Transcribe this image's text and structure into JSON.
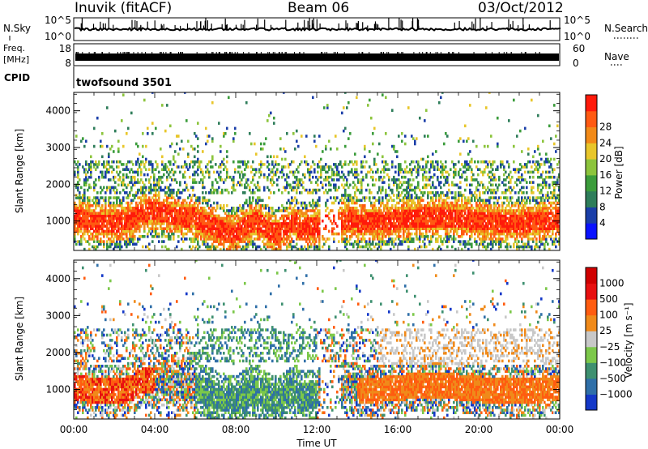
{
  "header": {
    "station": "Inuvik (fitACF)",
    "beam": "Beam 06",
    "date": "03/Oct/2012"
  },
  "strips": {
    "nsky_label": "N.Sky",
    "nsky_ticks": [
      "10^5",
      "10^0"
    ],
    "nsearch_label": "N.Search",
    "nsearch_ticks": [
      "10^5",
      "10^0"
    ],
    "freq_label_1": "Freq.",
    "freq_label_2": "[MHz]",
    "freq_ticks": [
      "18",
      "8"
    ],
    "nave_label": "Nave",
    "nave_ticks": [
      "60",
      "0"
    ],
    "cpid_label": "CPID",
    "cpid_value": "twofsound 3501"
  },
  "chart_data": [
    {
      "type": "heatmap",
      "name": "power",
      "ylabel": "Slant Range [km]",
      "yticks": [
        1000,
        2000,
        3000,
        4000
      ],
      "ylim": [
        200,
        4500
      ],
      "xlim": [
        0,
        24
      ],
      "colorbar": {
        "label": "Power [dB]",
        "ticks": [
          "4",
          "8",
          "12",
          "16",
          "20",
          "24",
          "28"
        ],
        "colors": [
          "#0a12ff",
          "#1a3ea8",
          "#2e7d5a",
          "#3b9c3b",
          "#8cc43c",
          "#e8c62a",
          "#f28a18",
          "#ff5a12",
          "#ff1a0a"
        ]
      }
    },
    {
      "type": "heatmap",
      "name": "velocity",
      "ylabel": "Slant Range [km]",
      "yticks": [
        1000,
        2000,
        3000,
        4000
      ],
      "ylim": [
        200,
        4500
      ],
      "xlim": [
        0,
        24
      ],
      "xlabel": "Time UT",
      "xticklabels": [
        "00:00",
        "04:00",
        "08:00",
        "12:00",
        "16:00",
        "20:00",
        "00:00"
      ],
      "colorbar": {
        "label": "Velocity [m s⁻¹]",
        "ticks": [
          "1000",
          "500",
          "100",
          "25",
          "−25",
          "−100",
          "−500",
          "−1000"
        ],
        "colors": [
          "#1438c8",
          "#2f6fa8",
          "#3e9070",
          "#7cc84a",
          "#c8c8c8",
          "#f08a1a",
          "#ff5c10",
          "#e81010",
          "#d00000"
        ]
      }
    }
  ]
}
